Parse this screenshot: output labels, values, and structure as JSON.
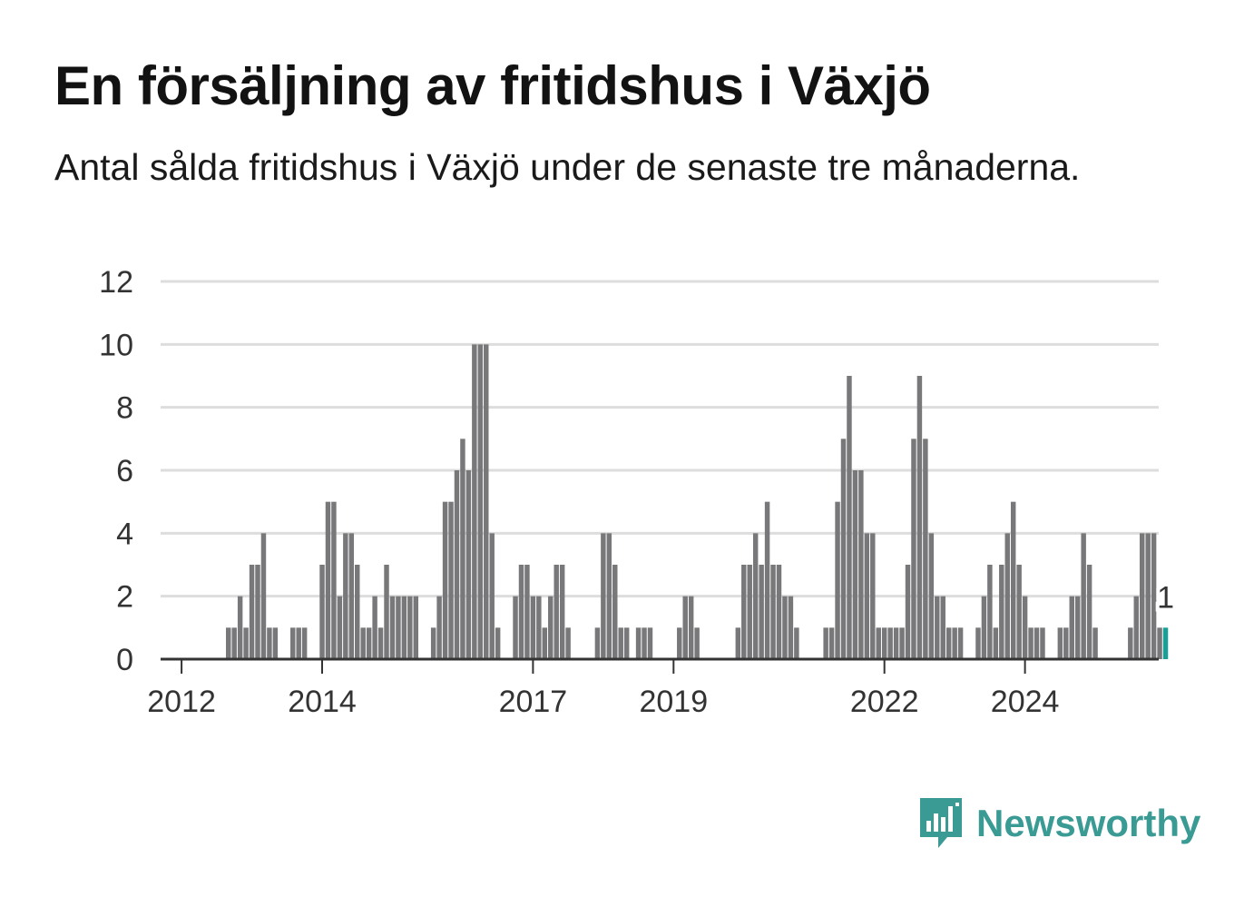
{
  "title": "En försäljning av fritidshus i Växjö",
  "subtitle": "Antal sålda fritidshus i Växjö under de senaste tre månaderna.",
  "brand": {
    "name": "Newsworthy",
    "icon": "newsworthy-logo-icon",
    "color": "#3a9a94"
  },
  "colors": {
    "bar": "#78787a",
    "highlight": "#1a9e96",
    "grid": "#dddddd",
    "axis": "#333333"
  },
  "chart_data": {
    "type": "bar",
    "title": "En försäljning av fritidshus i Växjö",
    "xlabel": "",
    "ylabel": "",
    "ylim": [
      0,
      12
    ],
    "yticks": [
      0,
      2,
      4,
      6,
      8,
      10,
      12
    ],
    "xticks": [
      "2012",
      "2014",
      "2017",
      "2019",
      "2022",
      "2024"
    ],
    "grid": true,
    "x_start": "2011-10",
    "frequency": "month",
    "values": [
      0,
      0,
      0,
      0,
      0,
      0,
      0,
      0,
      0,
      0,
      0,
      1,
      1,
      2,
      1,
      3,
      3,
      4,
      1,
      1,
      0,
      0,
      1,
      1,
      1,
      0,
      0,
      3,
      5,
      5,
      2,
      4,
      4,
      3,
      1,
      1,
      2,
      1,
      3,
      2,
      2,
      2,
      2,
      2,
      0,
      0,
      1,
      2,
      5,
      5,
      6,
      7,
      6,
      10,
      10,
      10,
      4,
      1,
      0,
      0,
      2,
      3,
      3,
      2,
      2,
      1,
      2,
      3,
      3,
      1,
      0,
      0,
      0,
      0,
      1,
      4,
      4,
      3,
      1,
      1,
      0,
      1,
      1,
      1,
      0,
      0,
      0,
      0,
      1,
      2,
      2,
      1,
      0,
      0,
      0,
      0,
      0,
      0,
      1,
      3,
      3,
      4,
      3,
      5,
      3,
      3,
      2,
      2,
      1,
      0,
      0,
      0,
      0,
      1,
      1,
      5,
      7,
      9,
      6,
      6,
      4,
      4,
      1,
      1,
      1,
      1,
      1,
      3,
      7,
      9,
      7,
      4,
      2,
      2,
      1,
      1,
      1,
      0,
      0,
      1,
      2,
      3,
      1,
      3,
      4,
      5,
      3,
      2,
      1,
      1,
      1,
      0,
      0,
      1,
      1,
      2,
      2,
      4,
      3,
      1,
      0,
      0,
      0,
      0,
      0,
      1,
      2,
      4,
      4,
      4,
      1,
      1
    ],
    "highlight": {
      "label": "1",
      "value": 1,
      "position": "last"
    }
  }
}
